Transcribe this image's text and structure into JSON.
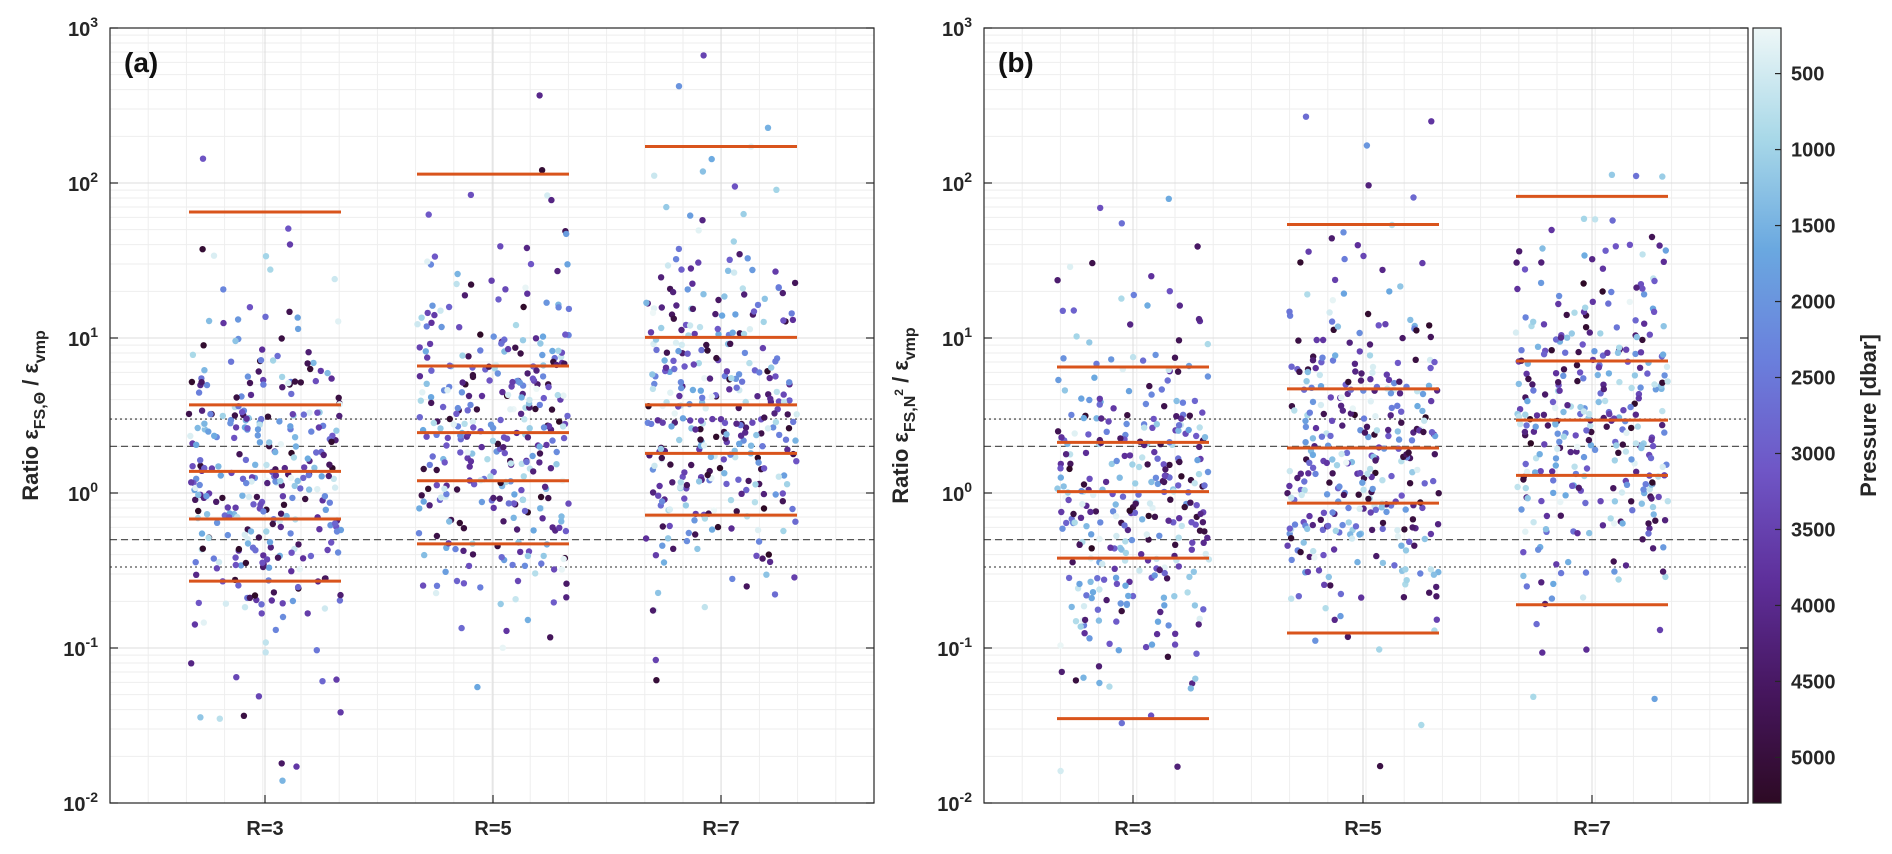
{
  "chart_data": [
    {
      "type": "scatter",
      "panel_label": "(a)",
      "ylabel_parts": [
        "Ratio ε",
        "FS,Θ",
        " / ε",
        "vmp"
      ],
      "yscale": "log",
      "ylim": [
        0.01,
        1000
      ],
      "ytick_exponents": [
        "-2",
        "-1",
        "0",
        "1",
        "2",
        "3"
      ],
      "ytick_base": "10",
      "categories": [
        "R=3",
        "R=5",
        "R=7"
      ],
      "reference_lines": [
        {
          "value": 3,
          "style": "dotted"
        },
        {
          "value": 2,
          "style": "dashed"
        },
        {
          "value": 0.5,
          "style": "dashed"
        },
        {
          "value": 0.333,
          "style": "dotted"
        }
      ],
      "percentile_lines": [
        {
          "category": "R=3",
          "values": [
            0.27,
            0.68,
            1.38,
            3.7,
            65
          ]
        },
        {
          "category": "R=5",
          "values": [
            0.47,
            1.2,
            2.45,
            6.6,
            114
          ]
        },
        {
          "category": "R=7",
          "values": [
            0.72,
            1.8,
            3.7,
            10.1,
            172
          ]
        }
      ],
      "points_per_category": 330,
      "random_seed": 11
    },
    {
      "type": "scatter",
      "panel_label": "(b)",
      "ylabel_parts": [
        "Ratio ε",
        "FS,N",
        "2",
        " / ε",
        "vmp"
      ],
      "yscale": "log",
      "ylim": [
        0.01,
        1000
      ],
      "ytick_exponents": [
        "-2",
        "-1",
        "0",
        "1",
        "2",
        "3"
      ],
      "ytick_base": "10",
      "categories": [
        "R=3",
        "R=5",
        "R=7"
      ],
      "reference_lines": [
        {
          "value": 3,
          "style": "dotted"
        },
        {
          "value": 2,
          "style": "dashed"
        },
        {
          "value": 0.5,
          "style": "dashed"
        },
        {
          "value": 0.333,
          "style": "dotted"
        }
      ],
      "percentile_lines": [
        {
          "category": "R=3",
          "values": [
            0.035,
            0.38,
            1.02,
            2.12,
            6.5
          ]
        },
        {
          "category": "R=5",
          "values": [
            0.125,
            0.86,
            1.95,
            4.7,
            54
          ]
        },
        {
          "category": "R=7",
          "values": [
            0.19,
            1.3,
            2.95,
            7.1,
            82
          ]
        }
      ],
      "points_per_category": 330,
      "random_seed": 29
    }
  ],
  "colorbar": {
    "label": "Pressure [dbar]",
    "range": [
      200,
      5300
    ],
    "reversed": true,
    "ticks": [
      "500",
      "1000",
      "1500",
      "2000",
      "2500",
      "3000",
      "3500",
      "4000",
      "4500",
      "5000"
    ],
    "colormap_stops": [
      "#eef7f7",
      "#a8d8e8",
      "#6aa8e0",
      "#6a7fdc",
      "#6f56c6",
      "#5e2f9a",
      "#46165e",
      "#2d0a24"
    ]
  },
  "colors": {
    "percentile_line": "#d9541c",
    "reference_line": "#555555",
    "grid_major": "#dcdcdc",
    "grid_minor": "#eeeeee",
    "axis": "#262626"
  }
}
